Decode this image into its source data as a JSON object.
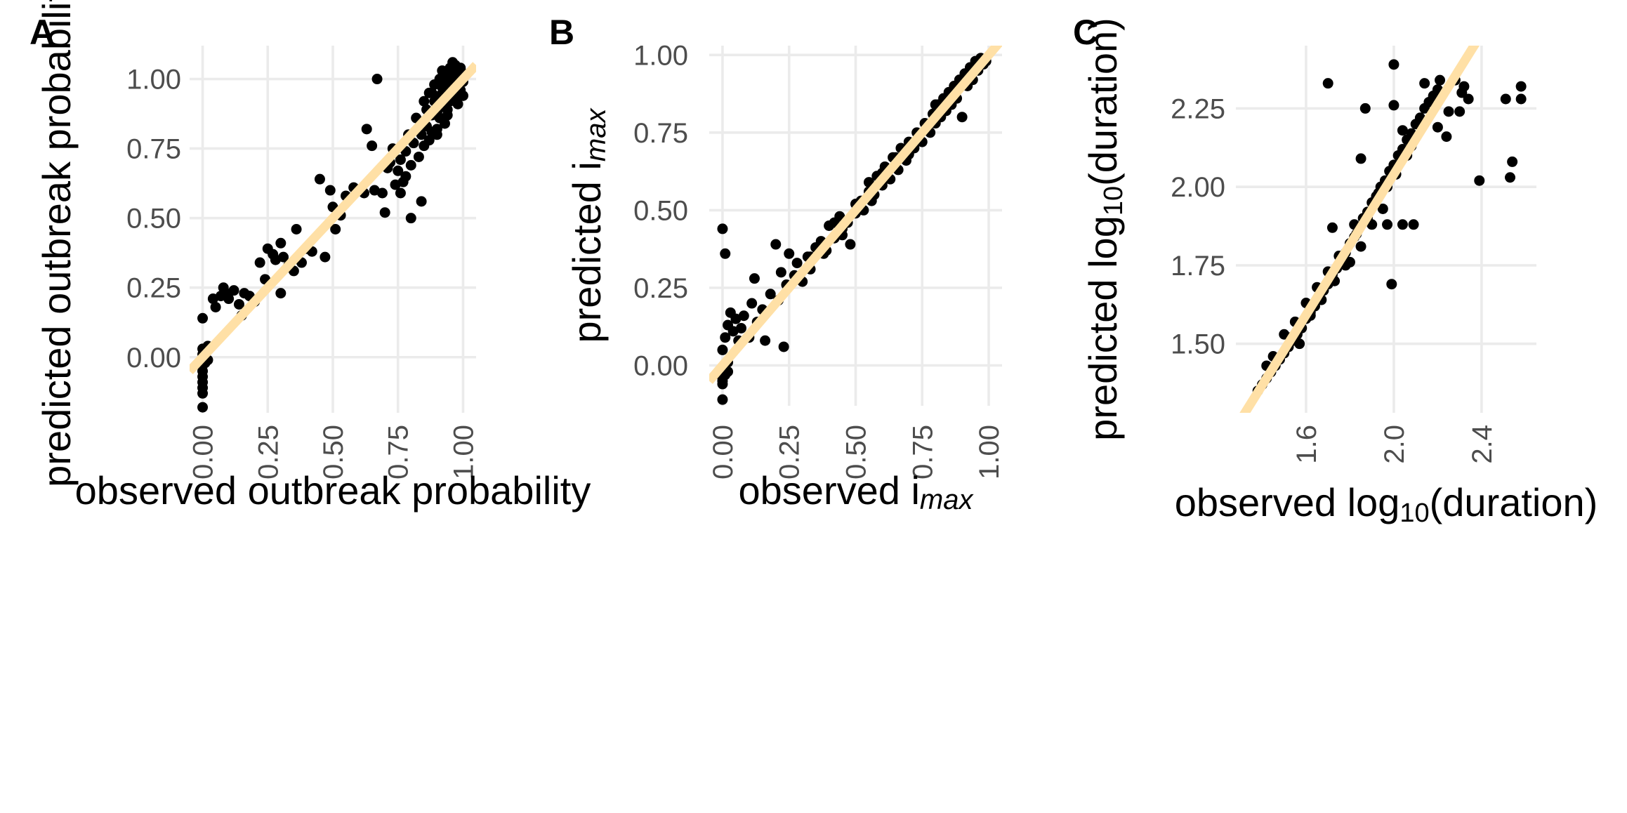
{
  "chart_data": [
    {
      "panel": "A",
      "type": "scatter",
      "xlabel": "observed outbreak probability",
      "ylabel": "predicted outbreak probability",
      "xlim": [
        -0.05,
        1.05
      ],
      "ylim": [
        -0.2,
        1.12
      ],
      "x_ticks": [
        0.0,
        0.25,
        0.5,
        0.75,
        1.0
      ],
      "x_tick_labels": [
        "0.00",
        "0.25",
        "0.50",
        "0.75",
        "1.00"
      ],
      "y_ticks": [
        0.0,
        0.25,
        0.5,
        0.75,
        1.0
      ],
      "y_tick_labels": [
        "0.00",
        "0.25",
        "0.50",
        "0.75",
        "1.00"
      ],
      "fit_line": {
        "slope": 1.0,
        "intercept": 0.0,
        "color": "#FFE0A6"
      },
      "point_color": "#000000",
      "points": [
        [
          0.0,
          -0.18
        ],
        [
          0.0,
          -0.13
        ],
        [
          0.0,
          -0.11
        ],
        [
          0.0,
          -0.09
        ],
        [
          0.0,
          -0.07
        ],
        [
          0.0,
          -0.05
        ],
        [
          0.0,
          -0.03
        ],
        [
          0.0,
          -0.01
        ],
        [
          0.0,
          0.01
        ],
        [
          0.0,
          0.03
        ],
        [
          0.01,
          -0.02
        ],
        [
          0.01,
          0.0
        ],
        [
          0.02,
          0.04
        ],
        [
          0.0,
          0.14
        ],
        [
          0.02,
          -0.01
        ],
        [
          0.04,
          0.21
        ],
        [
          0.05,
          0.18
        ],
        [
          0.07,
          0.22
        ],
        [
          0.08,
          0.25
        ],
        [
          0.09,
          0.23
        ],
        [
          0.1,
          0.21
        ],
        [
          0.12,
          0.24
        ],
        [
          0.14,
          0.19
        ],
        [
          0.15,
          0.15
        ],
        [
          0.16,
          0.23
        ],
        [
          0.18,
          0.22
        ],
        [
          0.2,
          0.2
        ],
        [
          0.22,
          0.34
        ],
        [
          0.24,
          0.28
        ],
        [
          0.25,
          0.39
        ],
        [
          0.27,
          0.37
        ],
        [
          0.28,
          0.35
        ],
        [
          0.3,
          0.41
        ],
        [
          0.3,
          0.23
        ],
        [
          0.31,
          0.36
        ],
        [
          0.33,
          0.33
        ],
        [
          0.35,
          0.31
        ],
        [
          0.36,
          0.46
        ],
        [
          0.38,
          0.34
        ],
        [
          0.4,
          0.39
        ],
        [
          0.42,
          0.38
        ],
        [
          0.45,
          0.64
        ],
        [
          0.47,
          0.36
        ],
        [
          0.49,
          0.6
        ],
        [
          0.5,
          0.54
        ],
        [
          0.51,
          0.46
        ],
        [
          0.53,
          0.51
        ],
        [
          0.55,
          0.58
        ],
        [
          0.58,
          0.61
        ],
        [
          0.6,
          0.6
        ],
        [
          0.62,
          0.59
        ],
        [
          0.63,
          0.82
        ],
        [
          0.65,
          0.76
        ],
        [
          0.66,
          0.6
        ],
        [
          0.67,
          1.0
        ],
        [
          0.69,
          0.59
        ],
        [
          0.7,
          0.52
        ],
        [
          0.71,
          0.68
        ],
        [
          0.72,
          0.7
        ],
        [
          0.73,
          0.75
        ],
        [
          0.74,
          0.62
        ],
        [
          0.75,
          0.67
        ],
        [
          0.76,
          0.59
        ],
        [
          0.76,
          0.71
        ],
        [
          0.77,
          0.63
        ],
        [
          0.78,
          0.65
        ],
        [
          0.78,
          0.74
        ],
        [
          0.79,
          0.8
        ],
        [
          0.8,
          0.5
        ],
        [
          0.8,
          0.69
        ],
        [
          0.81,
          0.77
        ],
        [
          0.82,
          0.86
        ],
        [
          0.83,
          0.72
        ],
        [
          0.84,
          0.8
        ],
        [
          0.84,
          0.56
        ],
        [
          0.85,
          0.92
        ],
        [
          0.85,
          0.76
        ],
        [
          0.86,
          0.89
        ],
        [
          0.86,
          0.83
        ],
        [
          0.87,
          0.78
        ],
        [
          0.87,
          0.95
        ],
        [
          0.88,
          0.87
        ],
        [
          0.88,
          0.81
        ],
        [
          0.89,
          0.92
        ],
        [
          0.89,
          0.98
        ],
        [
          0.9,
          0.82
        ],
        [
          0.9,
          0.88
        ],
        [
          0.91,
          1.0
        ],
        [
          0.91,
          0.94
        ],
        [
          0.91,
          0.86
        ],
        [
          0.92,
          0.97
        ],
        [
          0.92,
          0.9
        ],
        [
          0.92,
          1.03
        ],
        [
          0.93,
          0.93
        ],
        [
          0.93,
          0.99
        ],
        [
          0.93,
          0.84
        ],
        [
          0.94,
          1.01
        ],
        [
          0.94,
          0.96
        ],
        [
          0.94,
          0.89
        ],
        [
          0.95,
          1.04
        ],
        [
          0.95,
          0.98
        ],
        [
          0.95,
          0.92
        ],
        [
          0.96,
          1.02
        ],
        [
          0.96,
          0.95
        ],
        [
          0.96,
          1.06
        ],
        [
          0.97,
          1.0
        ],
        [
          0.97,
          0.93
        ],
        [
          0.97,
          1.05
        ],
        [
          0.98,
          0.97
        ],
        [
          0.98,
          1.03
        ],
        [
          0.98,
          0.91
        ],
        [
          0.99,
          1.01
        ],
        [
          0.99,
          0.96
        ],
        [
          0.99,
          1.04
        ],
        [
          1.0,
          0.99
        ],
        [
          1.0,
          0.94
        ],
        [
          1.0,
          1.02
        ],
        [
          0.9,
          0.8
        ],
        [
          0.88,
          0.95
        ],
        [
          0.94,
          0.87
        ]
      ]
    },
    {
      "panel": "B",
      "type": "scatter",
      "xlabel": "observed i",
      "xlabel_sub": "max",
      "ylabel": "predicted i",
      "ylabel_sub": "max",
      "xlim": [
        -0.05,
        1.05
      ],
      "ylim": [
        -0.13,
        1.03
      ],
      "x_ticks": [
        0.0,
        0.25,
        0.5,
        0.75,
        1.0
      ],
      "x_tick_labels": [
        "0.00",
        "0.25",
        "0.50",
        "0.75",
        "1.00"
      ],
      "y_ticks": [
        0.0,
        0.25,
        0.5,
        0.75,
        1.0
      ],
      "y_tick_labels": [
        "0.00",
        "0.25",
        "0.50",
        "0.75",
        "1.00"
      ],
      "fit_line": {
        "slope": 1.0,
        "intercept": 0.0,
        "color": "#FFE0A6"
      },
      "point_color": "#000000",
      "points": [
        [
          0.0,
          -0.11
        ],
        [
          0.0,
          -0.06
        ],
        [
          0.0,
          -0.05
        ],
        [
          0.0,
          -0.04
        ],
        [
          0.01,
          -0.03
        ],
        [
          0.02,
          -0.02
        ],
        [
          0.02,
          0.01
        ],
        [
          0.0,
          0.44
        ],
        [
          0.01,
          0.36
        ],
        [
          0.0,
          0.05
        ],
        [
          0.01,
          0.09
        ],
        [
          0.02,
          0.13
        ],
        [
          0.03,
          0.17
        ],
        [
          0.04,
          0.11
        ],
        [
          0.05,
          0.15
        ],
        [
          0.06,
          0.08
        ],
        [
          0.07,
          0.12
        ],
        [
          0.08,
          0.16
        ],
        [
          0.1,
          0.09
        ],
        [
          0.11,
          0.2
        ],
        [
          0.12,
          0.28
        ],
        [
          0.13,
          0.14
        ],
        [
          0.15,
          0.18
        ],
        [
          0.16,
          0.08
        ],
        [
          0.18,
          0.23
        ],
        [
          0.2,
          0.39
        ],
        [
          0.21,
          0.21
        ],
        [
          0.22,
          0.3
        ],
        [
          0.23,
          0.06
        ],
        [
          0.24,
          0.26
        ],
        [
          0.25,
          0.36
        ],
        [
          0.27,
          0.29
        ],
        [
          0.28,
          0.33
        ],
        [
          0.3,
          0.27
        ],
        [
          0.32,
          0.35
        ],
        [
          0.33,
          0.31
        ],
        [
          0.35,
          0.38
        ],
        [
          0.37,
          0.4
        ],
        [
          0.39,
          0.37
        ],
        [
          0.4,
          0.45
        ],
        [
          0.42,
          0.41
        ],
        [
          0.44,
          0.48
        ],
        [
          0.45,
          0.42
        ],
        [
          0.47,
          0.46
        ],
        [
          0.48,
          0.39
        ],
        [
          0.5,
          0.49
        ],
        [
          0.52,
          0.53
        ],
        [
          0.53,
          0.5
        ],
        [
          0.55,
          0.56
        ],
        [
          0.56,
          0.53
        ],
        [
          0.58,
          0.61
        ],
        [
          0.6,
          0.58
        ],
        [
          0.61,
          0.64
        ],
        [
          0.63,
          0.6
        ],
        [
          0.64,
          0.67
        ],
        [
          0.66,
          0.63
        ],
        [
          0.67,
          0.7
        ],
        [
          0.69,
          0.66
        ],
        [
          0.7,
          0.72
        ],
        [
          0.72,
          0.7
        ],
        [
          0.73,
          0.75
        ],
        [
          0.75,
          0.72
        ],
        [
          0.76,
          0.78
        ],
        [
          0.78,
          0.75
        ],
        [
          0.79,
          0.81
        ],
        [
          0.8,
          0.78
        ],
        [
          0.81,
          0.84
        ],
        [
          0.82,
          0.8
        ],
        [
          0.83,
          0.86
        ],
        [
          0.84,
          0.82
        ],
        [
          0.85,
          0.88
        ],
        [
          0.86,
          0.84
        ],
        [
          0.87,
          0.9
        ],
        [
          0.88,
          0.86
        ],
        [
          0.89,
          0.92
        ],
        [
          0.9,
          0.8
        ],
        [
          0.91,
          0.94
        ],
        [
          0.92,
          0.9
        ],
        [
          0.93,
          0.96
        ],
        [
          0.94,
          0.92
        ],
        [
          0.95,
          0.98
        ],
        [
          0.96,
          0.95
        ],
        [
          0.97,
          0.99
        ],
        [
          0.98,
          0.97
        ],
        [
          0.99,
          0.98
        ],
        [
          0.65,
          0.67
        ],
        [
          0.55,
          0.59
        ],
        [
          0.45,
          0.44
        ],
        [
          0.38,
          0.36
        ],
        [
          0.7,
          0.68
        ],
        [
          0.8,
          0.84
        ],
        [
          0.6,
          0.62
        ],
        [
          0.5,
          0.52
        ],
        [
          0.33,
          0.35
        ],
        [
          0.42,
          0.46
        ],
        [
          0.57,
          0.55
        ]
      ]
    },
    {
      "panel": "C",
      "type": "scatter",
      "xlabel": "observed log",
      "xlabel_sub": "10",
      "xlabel_tail": "(duration)",
      "ylabel": "predicted log",
      "ylabel_sub": "10",
      "ylabel_tail": "(duration)",
      "xlim": [
        1.28,
        2.65
      ],
      "ylim": [
        1.28,
        2.45
      ],
      "x_ticks": [
        1.6,
        2.0,
        2.4
      ],
      "x_tick_labels": [
        "1.6",
        "2.0",
        "2.4"
      ],
      "y_ticks": [
        1.5,
        1.75,
        2.0,
        2.25
      ],
      "y_tick_labels": [
        "1.50",
        "1.75",
        "2.00",
        "2.25"
      ],
      "fit_line": {
        "slope": 1.12,
        "intercept": -0.2,
        "color": "#FFE0A6"
      },
      "point_color": "#000000",
      "points": [
        [
          1.38,
          1.35
        ],
        [
          1.4,
          1.37
        ],
        [
          1.42,
          1.39
        ],
        [
          1.44,
          1.41
        ],
        [
          1.46,
          1.43
        ],
        [
          1.48,
          1.45
        ],
        [
          1.5,
          1.47
        ],
        [
          1.52,
          1.49
        ],
        [
          1.54,
          1.51
        ],
        [
          1.56,
          1.53
        ],
        [
          1.58,
          1.55
        ],
        [
          1.6,
          1.58
        ],
        [
          1.62,
          1.6
        ],
        [
          1.64,
          1.62
        ],
        [
          1.66,
          1.65
        ],
        [
          1.68,
          1.67
        ],
        [
          1.7,
          1.69
        ],
        [
          1.72,
          1.72
        ],
        [
          1.74,
          1.74
        ],
        [
          1.76,
          1.77
        ],
        [
          1.78,
          1.79
        ],
        [
          1.8,
          1.82
        ],
        [
          1.82,
          1.84
        ],
        [
          1.84,
          1.87
        ],
        [
          1.86,
          1.9
        ],
        [
          1.88,
          1.92
        ],
        [
          1.9,
          1.95
        ],
        [
          1.92,
          1.97
        ],
        [
          1.94,
          2.0
        ],
        [
          1.96,
          2.02
        ],
        [
          1.98,
          2.05
        ],
        [
          2.0,
          2.07
        ],
        [
          2.02,
          2.1
        ],
        [
          2.04,
          2.12
        ],
        [
          2.06,
          2.15
        ],
        [
          2.08,
          2.17
        ],
        [
          2.1,
          2.2
        ],
        [
          2.12,
          2.22
        ],
        [
          2.14,
          2.25
        ],
        [
          2.16,
          2.27
        ],
        [
          2.18,
          2.29
        ],
        [
          2.2,
          2.31
        ],
        [
          1.5,
          1.53
        ],
        [
          1.55,
          1.57
        ],
        [
          1.6,
          1.63
        ],
        [
          1.65,
          1.68
        ],
        [
          1.7,
          1.73
        ],
        [
          1.75,
          1.78
        ],
        [
          1.8,
          1.76
        ],
        [
          1.85,
          1.81
        ],
        [
          1.9,
          1.88
        ],
        [
          1.95,
          1.93
        ],
        [
          1.72,
          1.87
        ],
        [
          1.82,
          1.88
        ],
        [
          1.85,
          2.09
        ],
        [
          1.87,
          2.25
        ],
        [
          1.97,
          1.88
        ],
        [
          1.99,
          1.69
        ],
        [
          2.04,
          1.88
        ],
        [
          2.04,
          2.18
        ],
        [
          2.09,
          1.88
        ],
        [
          2.0,
          2.26
        ],
        [
          2.0,
          2.39
        ],
        [
          1.7,
          2.33
        ],
        [
          2.2,
          2.19
        ],
        [
          2.25,
          2.24
        ],
        [
          2.28,
          2.34
        ],
        [
          2.3,
          2.24
        ],
        [
          2.31,
          2.3
        ],
        [
          2.32,
          2.32
        ],
        [
          2.34,
          2.28
        ],
        [
          2.24,
          2.16
        ],
        [
          2.21,
          2.34
        ],
        [
          2.14,
          2.33
        ],
        [
          2.12,
          2.2
        ],
        [
          2.08,
          2.13
        ],
        [
          2.39,
          2.02
        ],
        [
          2.51,
          2.28
        ],
        [
          2.54,
          2.08
        ],
        [
          2.53,
          2.03
        ],
        [
          2.58,
          2.28
        ],
        [
          2.58,
          2.32
        ],
        [
          1.53,
          1.52
        ],
        [
          1.57,
          1.5
        ],
        [
          1.62,
          1.59
        ],
        [
          1.67,
          1.64
        ],
        [
          1.73,
          1.7
        ],
        [
          1.78,
          1.75
        ],
        [
          1.83,
          1.85
        ],
        [
          1.88,
          1.9
        ],
        [
          1.93,
          1.98
        ],
        [
          1.97,
          2.0
        ],
        [
          2.01,
          2.04
        ],
        [
          2.06,
          2.1
        ],
        [
          1.45,
          1.46
        ],
        [
          1.42,
          1.43
        ]
      ]
    }
  ]
}
